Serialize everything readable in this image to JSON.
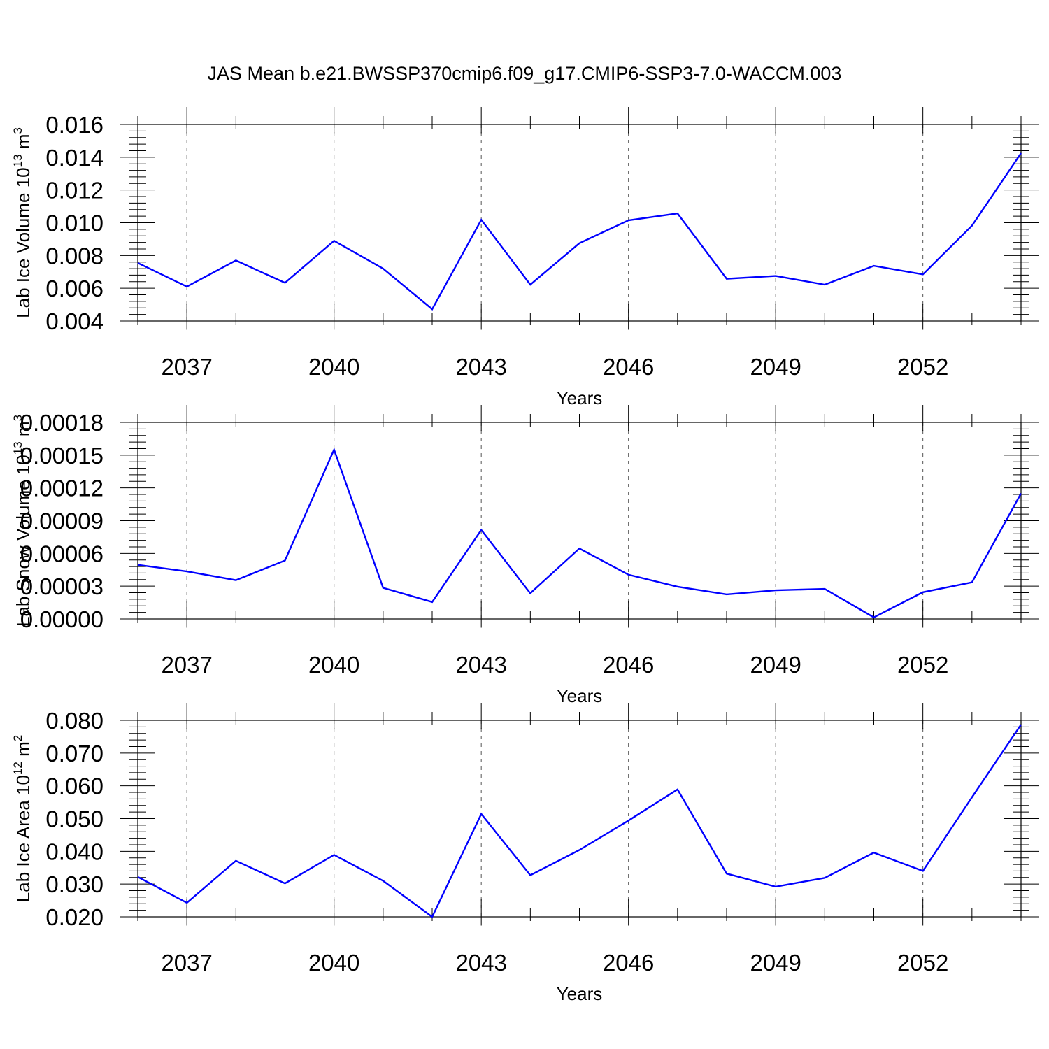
{
  "figure": {
    "title": "JAS Mean b.e21.BWSSP370cmip6.f09_g17.CMIP6-SSP3-7.0-WACCM.003",
    "line_color": "#0000ff"
  },
  "chart_data": [
    {
      "type": "line",
      "xlabel": "Years",
      "ylabel": "Lab Ice Volume 10",
      "ylabel_sup": "13",
      "ylabel_unit": " m",
      "ylabel_unit_sup": "3",
      "xlim": [
        2036,
        2054
      ],
      "ylim": [
        0.004,
        0.016
      ],
      "xticks": [
        2037,
        2040,
        2043,
        2046,
        2049,
        2052
      ],
      "yticks": [
        0.004,
        0.006,
        0.008,
        0.01,
        0.012,
        0.014,
        0.016
      ],
      "ytick_labels": [
        "0.004",
        "0.006",
        "0.008",
        "0.010",
        "0.012",
        "0.014",
        "0.016"
      ],
      "x": [
        2036,
        2037,
        2038,
        2039,
        2040,
        2041,
        2042,
        2043,
        2044,
        2045,
        2046,
        2047,
        2048,
        2049,
        2050,
        2051,
        2052,
        2053,
        2054
      ],
      "series": [
        {
          "values": [
            0.00755,
            0.0061,
            0.0077,
            0.00633,
            0.0089,
            0.0072,
            0.00472,
            0.01018,
            0.00622,
            0.00875,
            0.01015,
            0.01057,
            0.00658,
            0.00675,
            0.00622,
            0.00737,
            0.00685,
            0.00982,
            0.01425
          ]
        }
      ]
    },
    {
      "type": "line",
      "xlabel": "Years",
      "ylabel": "Lab Snow Volume 10",
      "ylabel_sup": "13",
      "ylabel_unit": " m",
      "ylabel_unit_sup": "3",
      "xlim": [
        2036,
        2054
      ],
      "ylim": [
        0,
        0.00018
      ],
      "xticks": [
        2037,
        2040,
        2043,
        2046,
        2049,
        2052
      ],
      "yticks": [
        0,
        3e-05,
        6e-05,
        9e-05,
        0.00012,
        0.00015,
        0.00018
      ],
      "ytick_labels": [
        "0.00000",
        "0.00003",
        "0.00006",
        "0.00009",
        "0.00012",
        "0.00015",
        "0.00018"
      ],
      "x": [
        2036,
        2037,
        2038,
        2039,
        2040,
        2041,
        2042,
        2043,
        2044,
        2045,
        2046,
        2047,
        2048,
        2049,
        2050,
        2051,
        2052,
        2053,
        2054
      ],
      "series": [
        {
          "values": [
            4.95e-05,
            4.35e-05,
            3.55e-05,
            5.35e-05,
            0.000155,
            2.85e-05,
            1.55e-05,
            8.15e-05,
            2.35e-05,
            6.45e-05,
            4.05e-05,
            2.95e-05,
            2.25e-05,
            2.62e-05,
            2.75e-05,
            1.5e-06,
            2.45e-05,
            3.35e-05,
            0.000115
          ]
        }
      ]
    },
    {
      "type": "line",
      "xlabel": "Years",
      "ylabel": "Lab Ice Area 10",
      "ylabel_sup": "12",
      "ylabel_unit": " m",
      "ylabel_unit_sup": "2",
      "xlim": [
        2036,
        2054
      ],
      "ylim": [
        0.02,
        0.08
      ],
      "xticks": [
        2037,
        2040,
        2043,
        2046,
        2049,
        2052
      ],
      "yticks": [
        0.02,
        0.03,
        0.04,
        0.05,
        0.06,
        0.07,
        0.08
      ],
      "ytick_labels": [
        "0.020",
        "0.030",
        "0.040",
        "0.050",
        "0.060",
        "0.070",
        "0.080"
      ],
      "x": [
        2036,
        2037,
        2038,
        2039,
        2040,
        2041,
        2042,
        2043,
        2044,
        2045,
        2046,
        2047,
        2048,
        2049,
        2050,
        2051,
        2052,
        2053,
        2054
      ],
      "series": [
        {
          "values": [
            0.0322,
            0.0243,
            0.0371,
            0.0302,
            0.0389,
            0.031,
            0.02,
            0.0514,
            0.0327,
            0.0404,
            0.0494,
            0.0589,
            0.0332,
            0.0292,
            0.0319,
            0.0396,
            0.034,
            0.0565,
            0.0787
          ]
        }
      ]
    }
  ]
}
